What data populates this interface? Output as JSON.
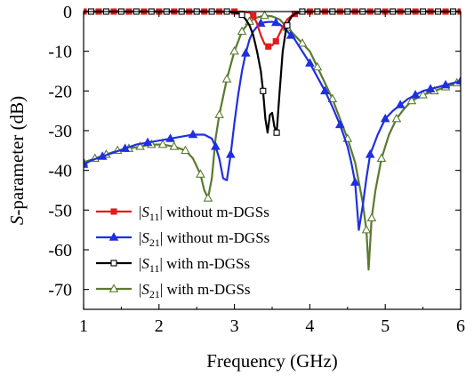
{
  "chart_data": {
    "type": "line",
    "xlabel": "Frequency (GHz)",
    "ylabel_italic": "S",
    "ylabel_rest": "-parameter (dB)",
    "xlim": [
      1,
      6
    ],
    "ylim": [
      -75,
      0
    ],
    "xticks": [
      1,
      2,
      3,
      4,
      5,
      6
    ],
    "yticks": [
      0,
      -10,
      -20,
      -30,
      -40,
      -50,
      -60,
      -70
    ],
    "xtick_labels": [
      "1",
      "2",
      "3",
      "4",
      "5",
      "6"
    ],
    "ytick_labels": [
      "0",
      "-10",
      "-20",
      "-30",
      "-40",
      "-50",
      "-60",
      "-70"
    ],
    "grid": false,
    "legend_position": "lower-left",
    "series": [
      {
        "name": "|S11| without m-DGSs",
        "legend": {
          "pre": "|",
          "sym": "S",
          "sub": "11",
          "post": "| without m-DGSs"
        },
        "color": "#e41a1c",
        "marker": "square-filled",
        "x": [
          1.0,
          1.1,
          1.2,
          1.4,
          1.6,
          1.8,
          2.0,
          2.2,
          2.4,
          2.6,
          2.8,
          3.0,
          3.1,
          3.2,
          3.25,
          3.3,
          3.35,
          3.4,
          3.45,
          3.5,
          3.55,
          3.6,
          3.65,
          3.7,
          3.75,
          3.8,
          3.9,
          4.0,
          4.2,
          4.4,
          4.6,
          4.8,
          5.0,
          5.2,
          5.4,
          5.6,
          5.8,
          6.0
        ],
        "y": [
          0,
          0,
          0,
          0,
          0,
          0,
          0,
          0,
          0,
          0,
          0,
          0,
          0,
          -0.3,
          -1.0,
          -3.0,
          -6.0,
          -8.2,
          -8.8,
          -8.5,
          -7.5,
          -5.5,
          -3.5,
          -2.0,
          -1.2,
          -0.6,
          -0.2,
          0,
          0,
          0,
          0,
          0,
          0,
          0,
          0,
          0,
          0,
          0
        ],
        "marker_x": [
          1.0,
          1.2,
          1.4,
          1.6,
          1.8,
          2.0,
          2.2,
          2.4,
          2.6,
          2.8,
          3.0,
          3.25,
          3.45,
          3.55,
          3.8,
          4.0,
          4.2,
          4.4,
          4.6,
          4.8,
          5.0,
          5.2,
          5.4,
          5.6,
          5.8,
          6.0
        ],
        "marker_y": [
          0,
          0,
          0,
          0,
          0,
          0,
          0,
          0,
          0,
          0,
          0,
          -1.0,
          -8.8,
          -7.5,
          -0.6,
          0,
          0,
          0,
          0,
          0,
          0,
          0,
          0,
          0,
          0,
          0
        ]
      },
      {
        "name": "|S21| without m-DGSs",
        "legend": {
          "pre": "|",
          "sym": "S",
          "sub": "21",
          "post": "| without m-DGSs"
        },
        "color": "#1f2fe0",
        "marker": "triangle-filled",
        "x": [
          1.0,
          1.1,
          1.25,
          1.4,
          1.55,
          1.7,
          1.85,
          2.0,
          2.15,
          2.3,
          2.45,
          2.6,
          2.7,
          2.75,
          2.8,
          2.85,
          2.9,
          2.95,
          3.0,
          3.05,
          3.1,
          3.15,
          3.2,
          3.25,
          3.3,
          3.35,
          3.4,
          3.45,
          3.5,
          3.55,
          3.6,
          3.65,
          3.7,
          3.75,
          3.8,
          3.9,
          4.0,
          4.1,
          4.2,
          4.3,
          4.4,
          4.5,
          4.55,
          4.6,
          4.65,
          4.7,
          4.75,
          4.8,
          4.9,
          5.0,
          5.1,
          5.2,
          5.3,
          5.4,
          5.5,
          5.6,
          5.7,
          5.8,
          5.9,
          6.0
        ],
        "y": [
          -38.5,
          -37.5,
          -36.5,
          -35.5,
          -34.5,
          -33.5,
          -33.0,
          -32.5,
          -32.0,
          -31.5,
          -31.0,
          -31.0,
          -32.0,
          -34.0,
          -37.0,
          -42.0,
          -42.5,
          -36.0,
          -28.0,
          -21.0,
          -15.0,
          -10.5,
          -7.0,
          -5.0,
          -3.8,
          -3.0,
          -2.7,
          -2.6,
          -2.6,
          -2.8,
          -3.2,
          -4.0,
          -5.0,
          -6.0,
          -7.0,
          -10.0,
          -13.0,
          -16.5,
          -20.0,
          -24.0,
          -28.5,
          -34.0,
          -38.0,
          -43.0,
          -55.0,
          -49.0,
          -42.0,
          -36.0,
          -31.0,
          -27.0,
          -25.0,
          -23.5,
          -22.0,
          -21.0,
          -20.0,
          -19.5,
          -19.0,
          -18.5,
          -18.0,
          -17.5
        ],
        "marker_x": [
          1.0,
          1.25,
          1.55,
          1.85,
          2.15,
          2.45,
          2.75,
          2.95,
          3.15,
          3.35,
          3.55,
          3.75,
          4.0,
          4.2,
          4.4,
          4.6,
          4.8,
          5.0,
          5.2,
          5.4,
          5.6,
          5.8,
          6.0
        ],
        "marker_y": [
          -38.5,
          -36.5,
          -34.5,
          -33.0,
          -32.0,
          -31.0,
          -34.0,
          -36.0,
          -10.5,
          -3.0,
          -2.8,
          -6.0,
          -13.0,
          -20.0,
          -28.5,
          -43.0,
          -36.0,
          -27.0,
          -23.5,
          -21.0,
          -19.5,
          -18.5,
          -17.5
        ]
      },
      {
        "name": "|S11| with m-DGSs",
        "legend": {
          "pre": "|",
          "sym": "S",
          "sub": "11",
          "post": "| with m-DGSs"
        },
        "color": "#000000",
        "marker": "square-open",
        "x": [
          1.0,
          1.2,
          1.4,
          1.6,
          1.8,
          2.0,
          2.2,
          2.4,
          2.6,
          2.8,
          3.0,
          3.1,
          3.15,
          3.2,
          3.25,
          3.3,
          3.35,
          3.38,
          3.41,
          3.44,
          3.47,
          3.5,
          3.53,
          3.56,
          3.6,
          3.64,
          3.68,
          3.72,
          3.76,
          3.8,
          3.85,
          3.9,
          4.0,
          4.2,
          4.4,
          4.6,
          4.8,
          5.0,
          5.2,
          5.4,
          5.6,
          5.8,
          6.0
        ],
        "y": [
          0,
          0,
          0,
          0,
          0,
          0,
          0,
          0,
          0,
          0,
          -0.2,
          -0.8,
          -2.0,
          -3.5,
          -6.0,
          -10.0,
          -15.0,
          -20.0,
          -27.0,
          -30.5,
          -26.0,
          -25.5,
          -29.0,
          -30.5,
          -20.0,
          -10.0,
          -5.0,
          -2.5,
          -1.2,
          -0.6,
          -0.2,
          0,
          0,
          0,
          0,
          0,
          0,
          0,
          0,
          0,
          0,
          0,
          0
        ],
        "marker_x": [
          1.1,
          1.3,
          1.5,
          1.7,
          1.9,
          2.1,
          2.3,
          2.5,
          2.7,
          2.9,
          3.1,
          3.38,
          3.56,
          3.7,
          3.9,
          4.1,
          4.3,
          4.5,
          4.7,
          4.9,
          5.1,
          5.3,
          5.5,
          5.7,
          5.9
        ],
        "marker_y": [
          0,
          0,
          0,
          0,
          0,
          0,
          0,
          0,
          0,
          0,
          -0.8,
          -20.0,
          -30.5,
          -3.5,
          0,
          0,
          0,
          0,
          0,
          0,
          0,
          0,
          0,
          0,
          0
        ]
      },
      {
        "name": "|S21| with m-DGSs",
        "legend": {
          "pre": "|",
          "sym": "S",
          "sub": "21",
          "post": "| with m-DGSs"
        },
        "color": "#5a7a2e",
        "marker": "triangle-open",
        "x": [
          1.0,
          1.15,
          1.3,
          1.45,
          1.6,
          1.75,
          1.9,
          2.05,
          2.2,
          2.35,
          2.45,
          2.55,
          2.6,
          2.65,
          2.7,
          2.75,
          2.8,
          2.9,
          3.0,
          3.1,
          3.2,
          3.3,
          3.4,
          3.5,
          3.6,
          3.7,
          3.8,
          3.9,
          4.0,
          4.1,
          4.2,
          4.3,
          4.4,
          4.5,
          4.6,
          4.7,
          4.75,
          4.78,
          4.82,
          4.87,
          4.95,
          5.05,
          5.15,
          5.25,
          5.35,
          5.5,
          5.65,
          5.8,
          5.95,
          6.0
        ],
        "y": [
          -38.0,
          -37.0,
          -36.0,
          -35.0,
          -34.5,
          -34.0,
          -33.5,
          -33.5,
          -34.0,
          -35.0,
          -37.0,
          -41.0,
          -45.0,
          -47.0,
          -42.0,
          -32.0,
          -26.0,
          -17.0,
          -10.0,
          -5.0,
          -2.5,
          -1.5,
          -1.0,
          -1.2,
          -2.0,
          -4.0,
          -6.0,
          -8.0,
          -10.0,
          -14.0,
          -18.0,
          -22.0,
          -27.0,
          -32.0,
          -38.0,
          -48.0,
          -55.0,
          -65.0,
          -52.0,
          -45.0,
          -37.0,
          -31.0,
          -27.0,
          -24.5,
          -22.5,
          -21.0,
          -20.0,
          -19.0,
          -18.0,
          -17.5
        ],
        "marker_x": [
          1.0,
          1.15,
          1.3,
          1.45,
          1.6,
          1.75,
          1.9,
          2.05,
          2.2,
          2.35,
          2.55,
          2.65,
          2.8,
          2.9,
          3.0,
          3.1,
          3.2,
          3.4,
          3.7,
          3.9,
          4.1,
          4.3,
          4.5,
          4.75,
          4.82,
          4.95,
          5.15,
          5.35,
          5.5,
          5.65,
          5.8,
          5.95
        ],
        "marker_y": [
          -38.0,
          -37.0,
          -36.0,
          -35.0,
          -34.5,
          -34.0,
          -33.5,
          -33.5,
          -34.0,
          -35.0,
          -41.0,
          -47.0,
          -26.0,
          -17.0,
          -10.0,
          -5.0,
          -2.5,
          -1.0,
          -4.0,
          -8.0,
          -14.0,
          -22.0,
          -32.0,
          -55.0,
          -52.0,
          -37.0,
          -27.0,
          -22.5,
          -21.0,
          -20.0,
          -19.0,
          -18.0
        ]
      }
    ]
  }
}
